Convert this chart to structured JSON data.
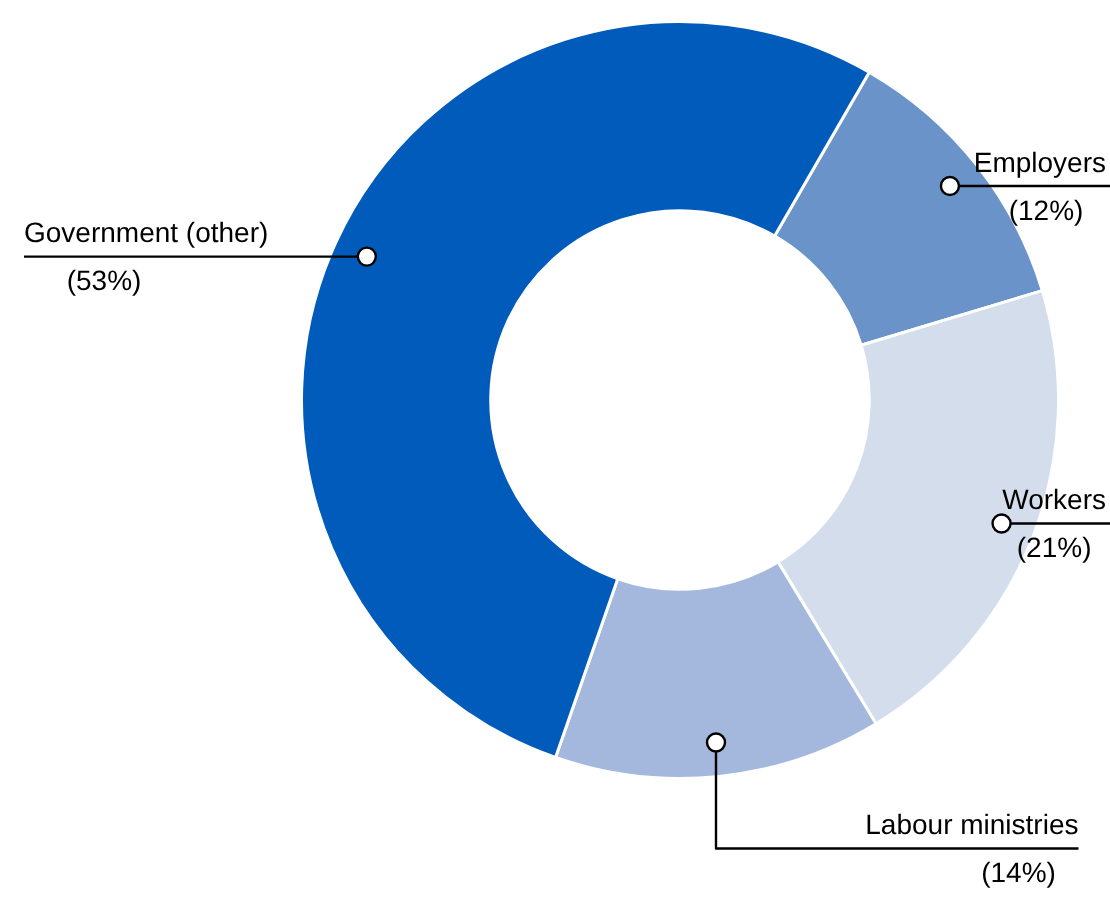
{
  "chart_data": {
    "type": "donut",
    "categories": [
      "Employers",
      "Workers",
      "Labour ministries",
      "Government (other)"
    ],
    "values": [
      12,
      21,
      14,
      53
    ],
    "colors": [
      "#6a93c9",
      "#d3ddec",
      "#a3b8dc",
      "#005bbb"
    ],
    "value_labels": [
      "(12%)",
      "(21%)",
      "(14%)",
      "(53%)"
    ],
    "legend": false
  }
}
